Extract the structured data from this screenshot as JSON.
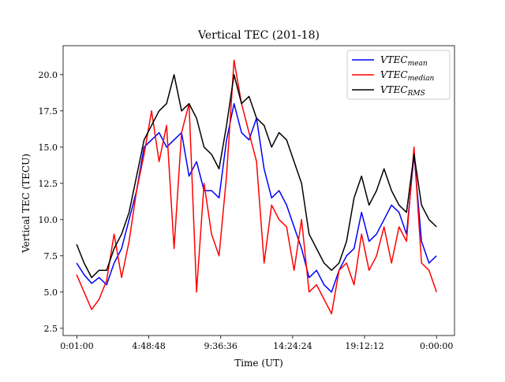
{
  "chart_data": {
    "type": "line",
    "title": "Vertical TEC (201-18)",
    "xlabel": "Time (UT)",
    "ylabel": "Vertical TEC (TECU)",
    "x_tick_labels": [
      "0:01:00",
      "4:48:48",
      "9:36:36",
      "14:24:24",
      "19:12:12",
      "0:00:00"
    ],
    "x_tick_values_hours": [
      0.0167,
      4.8133,
      9.61,
      14.4067,
      19.2033,
      24.0
    ],
    "xlim_hours": [
      -0.9,
      25.2
    ],
    "y_ticks": [
      2.5,
      5.0,
      7.5,
      10.0,
      12.5,
      15.0,
      17.5,
      20.0
    ],
    "y_tick_labels": [
      "2.5",
      "5.0",
      "7.5",
      "10.0",
      "12.5",
      "15.0",
      "17.5",
      "20.0"
    ],
    "ylim": [
      2.0,
      22.0
    ],
    "grid": false,
    "legend_position": "top-right",
    "x_hours": [
      0.0,
      0.5,
      1.0,
      1.5,
      2.0,
      2.5,
      3.0,
      3.5,
      4.0,
      4.5,
      5.0,
      5.5,
      6.0,
      6.5,
      7.0,
      7.5,
      8.0,
      8.5,
      9.0,
      9.5,
      10.0,
      10.5,
      11.0,
      11.5,
      12.0,
      12.5,
      13.0,
      13.5,
      14.0,
      14.5,
      15.0,
      15.5,
      16.0,
      16.5,
      17.0,
      17.5,
      18.0,
      18.5,
      19.0,
      19.5,
      20.0,
      20.5,
      21.0,
      21.5,
      22.0,
      22.5,
      23.0,
      23.5,
      24.0
    ],
    "series": [
      {
        "name": "VTEC",
        "name_sub": "mean",
        "color": "#0000ff",
        "values": [
          7.0,
          6.2,
          5.6,
          6.0,
          5.5,
          7.0,
          8.0,
          10.0,
          12.0,
          15.0,
          15.5,
          16.0,
          15.0,
          15.5,
          16.0,
          13.0,
          14.0,
          12.0,
          12.0,
          11.5,
          15.5,
          18.0,
          16.0,
          15.5,
          17.0,
          13.5,
          11.5,
          12.0,
          11.0,
          9.5,
          8.0,
          6.0,
          6.5,
          5.5,
          5.0,
          6.5,
          7.5,
          8.0,
          10.5,
          8.5,
          9.0,
          10.0,
          11.0,
          10.5,
          9.0,
          14.5,
          8.5,
          7.0,
          7.5
        ]
      },
      {
        "name": "VTEC",
        "name_sub": "median",
        "color": "#ff0000",
        "values": [
          6.2,
          5.0,
          3.8,
          4.5,
          5.8,
          9.0,
          6.0,
          8.5,
          12.0,
          14.5,
          17.5,
          14.0,
          16.5,
          8.0,
          16.0,
          18.0,
          5.0,
          12.5,
          9.0,
          7.5,
          13.0,
          21.0,
          18.0,
          16.0,
          14.0,
          7.0,
          11.0,
          10.0,
          9.5,
          6.5,
          10.0,
          5.0,
          5.5,
          4.5,
          3.5,
          6.5,
          7.0,
          5.5,
          9.0,
          6.5,
          7.5,
          9.5,
          7.0,
          9.5,
          8.5,
          15.0,
          7.0,
          6.5,
          5.0
        ]
      },
      {
        "name": "VTEC",
        "name_sub": "RMS",
        "color": "#000000",
        "values": [
          8.3,
          7.0,
          6.0,
          6.5,
          6.5,
          8.0,
          9.0,
          10.5,
          13.0,
          15.5,
          16.5,
          17.5,
          18.0,
          20.0,
          17.5,
          18.0,
          17.0,
          15.0,
          14.5,
          13.5,
          16.5,
          20.0,
          18.0,
          18.5,
          17.0,
          16.5,
          15.0,
          16.0,
          15.5,
          14.0,
          12.5,
          9.0,
          8.0,
          7.0,
          6.5,
          7.0,
          8.5,
          11.5,
          13.0,
          11.0,
          12.0,
          13.5,
          12.0,
          11.0,
          10.5,
          14.5,
          11.0,
          10.0,
          9.5
        ]
      }
    ]
  }
}
